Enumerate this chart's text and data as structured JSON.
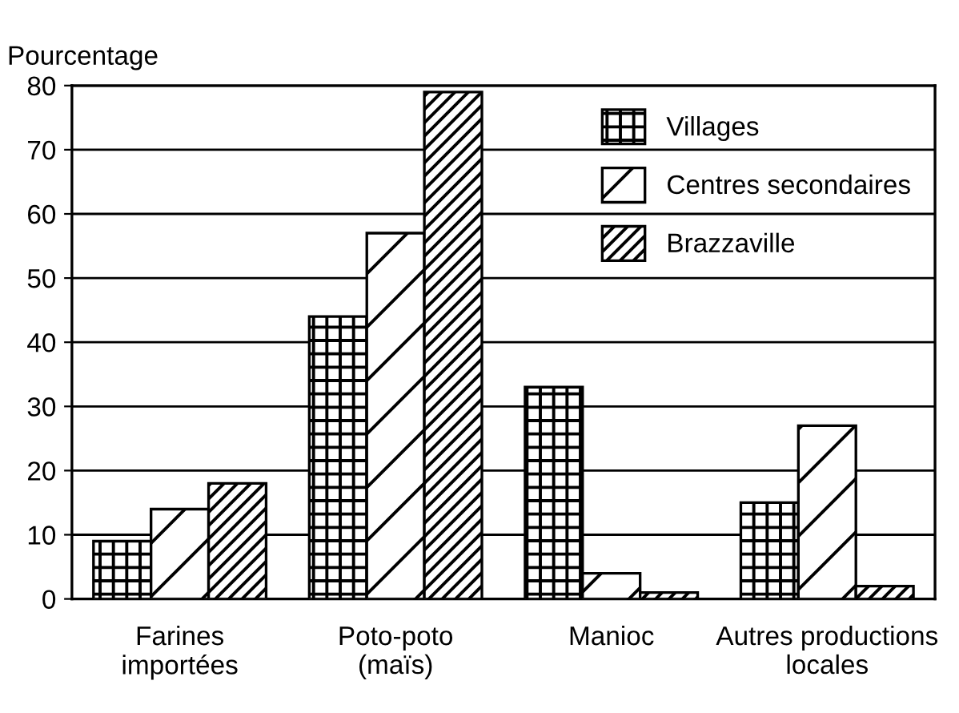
{
  "chart_data": {
    "type": "bar",
    "ylabel": "Pourcentage",
    "categories": [
      "Farines\nimportées",
      "Poto-poto\n(maïs)",
      "Manioc",
      "Autres productions\nlocales"
    ],
    "series": [
      {
        "name": "Villages",
        "color": "#000000",
        "values": [
          9,
          44,
          33,
          15
        ]
      },
      {
        "name": "Centres secondaires",
        "color": "#000000",
        "values": [
          14,
          57,
          4,
          27
        ]
      },
      {
        "name": "Brazzaville",
        "color": "#000000",
        "values": [
          18,
          79,
          1,
          2
        ]
      }
    ],
    "ylim": [
      0,
      80
    ],
    "yticks": [
      0,
      10,
      20,
      30,
      40,
      50,
      60,
      70,
      80
    ],
    "grid": "y",
    "legend": "top right"
  }
}
